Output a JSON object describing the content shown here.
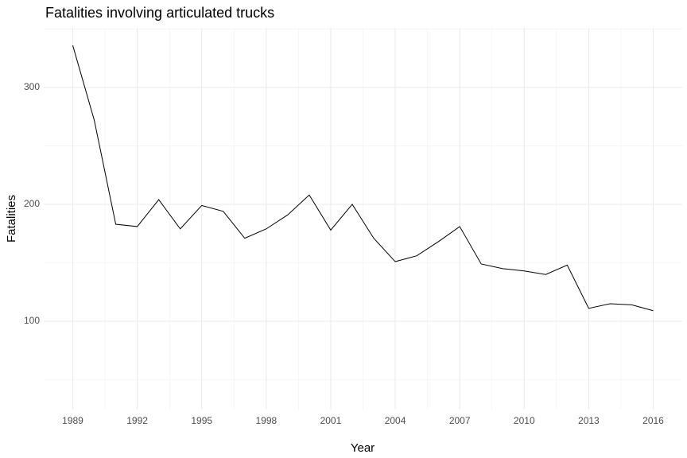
{
  "chart_data": {
    "type": "line",
    "title": "Fatalities involving articulated trucks",
    "x_label": "Year",
    "y_label": "Fatalities",
    "x": [
      1989,
      1990,
      1991,
      1992,
      1993,
      1994,
      1995,
      1996,
      1997,
      1998,
      1999,
      2000,
      2001,
      2002,
      2003,
      2004,
      2005,
      2006,
      2007,
      2008,
      2009,
      2010,
      2011,
      2012,
      2013,
      2014,
      2015,
      2016
    ],
    "values": [
      336,
      272,
      183,
      181,
      204,
      179,
      199,
      194,
      171,
      179,
      191,
      208,
      178,
      200,
      171,
      151,
      156,
      168,
      181,
      149,
      145,
      143,
      140,
      148,
      111,
      115,
      114,
      109
    ],
    "color": "#000000",
    "xlim": [
      1987.65,
      2017.35
    ],
    "xticks": [
      1989,
      1992,
      1995,
      1998,
      2001,
      2004,
      2007,
      2010,
      2013,
      2016
    ],
    "ylim": [
      24.5,
      351
    ],
    "yticks": [
      100,
      200,
      300
    ],
    "grid": true
  }
}
